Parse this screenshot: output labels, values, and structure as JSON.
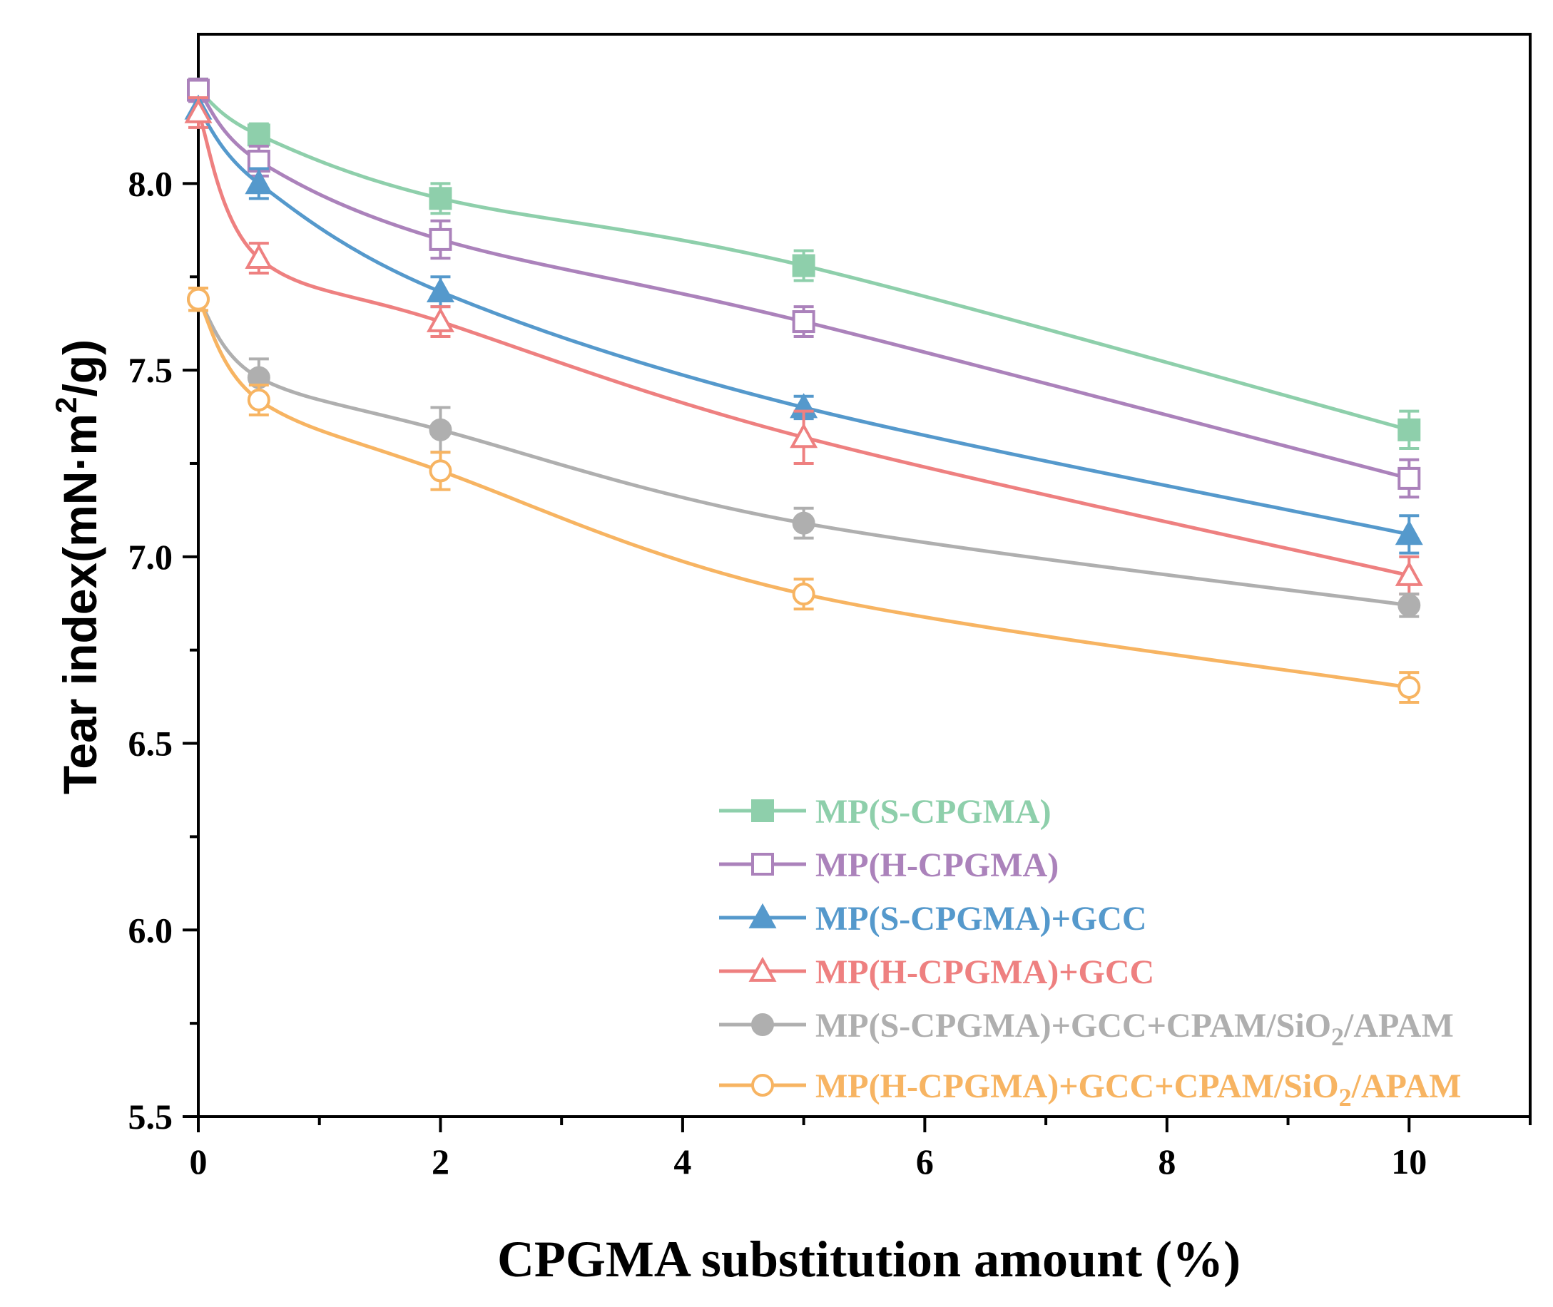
{
  "chart_data": {
    "type": "line",
    "xlabel": "CPGMA substitution amount (%)",
    "ylabel_prefix": "Tear index(mN·m",
    "ylabel_sup": "2",
    "ylabel_suffix": "/g)",
    "xlim": [
      0,
      11
    ],
    "ylim": [
      5.5,
      8.4
    ],
    "xticks": [
      0,
      2,
      4,
      6,
      8,
      10
    ],
    "xtick_labels": [
      "0",
      "2",
      "4",
      "6",
      "8",
      "10"
    ],
    "yticks": [
      5.5,
      6.0,
      6.5,
      7.0,
      7.5,
      8.0
    ],
    "ytick_labels": [
      "5.5",
      "6.0",
      "6.5",
      "7.0",
      "7.5",
      "8.0"
    ],
    "x": [
      0,
      0.5,
      2,
      5,
      10
    ],
    "series": [
      {
        "name": "MP(S-CPGMA)",
        "legend_parts": [
          "MP(S-CPGMA)"
        ],
        "color": "#8ECFAB",
        "marker": "square-filled",
        "values": [
          8.25,
          8.13,
          7.96,
          7.78,
          7.34
        ],
        "errors": [
          0.03,
          0.03,
          0.04,
          0.04,
          0.05
        ]
      },
      {
        "name": "MP(H-CPGMA)",
        "legend_parts": [
          "MP(H-CPGMA)"
        ],
        "color": "#AB82BB",
        "marker": "square-open",
        "values": [
          8.25,
          8.06,
          7.85,
          7.63,
          7.21
        ],
        "errors": [
          0.03,
          0.04,
          0.05,
          0.04,
          0.05
        ]
      },
      {
        "name": "MP(S-CPGMA)+GCC",
        "legend_parts": [
          "MP(S-CPGMA)+GCC"
        ],
        "color": "#5599CC",
        "marker": "triangle-filled",
        "values": [
          8.2,
          8.0,
          7.71,
          7.4,
          7.06
        ],
        "errors": [
          0.03,
          0.04,
          0.04,
          0.03,
          0.05
        ]
      },
      {
        "name": "MP(H-CPGMA)+GCC",
        "legend_parts": [
          "MP(H-CPGMA)+GCC"
        ],
        "color": "#EE8080",
        "marker": "triangle-open",
        "values": [
          8.19,
          7.8,
          7.63,
          7.32,
          6.95
        ],
        "errors": [
          0.04,
          0.04,
          0.04,
          0.07,
          0.05
        ]
      },
      {
        "name": "MP(S-CPGMA)+GCC+CPAM/SiO2/APAM",
        "legend_parts": [
          "MP(S-CPGMA)+GCC+CPAM/SiO",
          "2",
          "/APAM"
        ],
        "color": "#AFAFAF",
        "marker": "circle-filled",
        "values": [
          7.69,
          7.48,
          7.34,
          7.09,
          6.87
        ],
        "errors": [
          0.03,
          0.05,
          0.06,
          0.04,
          0.03
        ]
      },
      {
        "name": "MP(H-CPGMA)+GCC+CPAM/SiO2/APAM",
        "legend_parts": [
          "MP(H-CPGMA)+GCC+CPAM/SiO",
          "2",
          "/APAM"
        ],
        "color": "#F7B462",
        "marker": "circle-open",
        "values": [
          7.69,
          7.42,
          7.23,
          6.9,
          6.65
        ],
        "errors": [
          0.03,
          0.04,
          0.05,
          0.04,
          0.04
        ]
      }
    ]
  }
}
